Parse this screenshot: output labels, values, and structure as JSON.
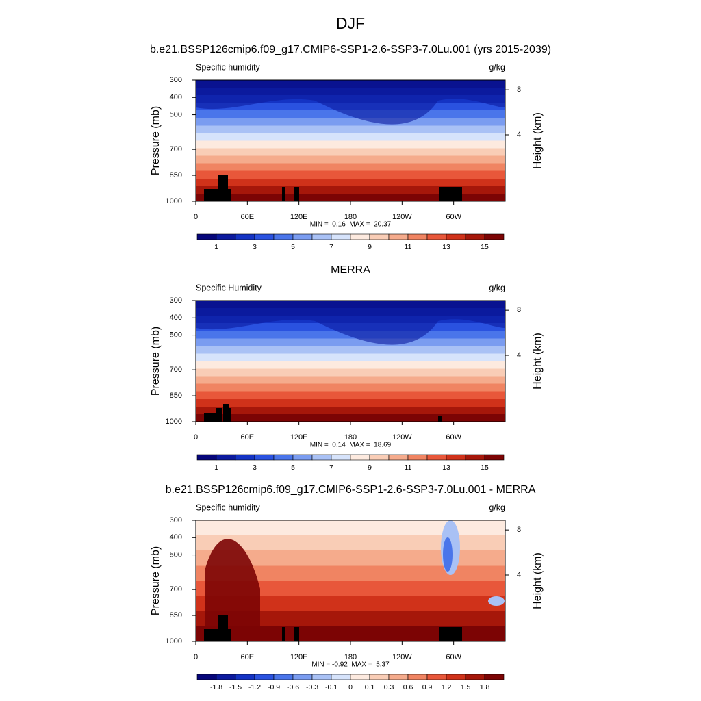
{
  "title": "DJF",
  "chart_data": [
    {
      "type": "contour",
      "title": "b.e21.BSSP126cmip6.f09_g17.CMIP6-SSP1-2.6-SSP3-7.0Lu.001 (yrs 2015-2039)",
      "left_label": "Specific humidity",
      "right_label": "g/kg",
      "ylabel": "Pressure (mb)",
      "y2label": "Height (km)",
      "ylim": [
        1000,
        300
      ],
      "yticks": [
        300,
        400,
        500,
        700,
        850,
        1000
      ],
      "y2ticks": [
        8,
        4
      ],
      "xlim": [
        0,
        360
      ],
      "xticks": [
        0,
        {
          "value": 60,
          "label": "60E"
        },
        {
          "value": 120,
          "label": "120E"
        },
        180,
        {
          "value": 240,
          "label": "120W"
        },
        {
          "value": 300,
          "label": "60W"
        }
      ],
      "stats": "MIN =  0.16  MAX =  20.37",
      "colorbar": {
        "labels": [
          1,
          3,
          5,
          7,
          9,
          11,
          13,
          15
        ],
        "colors": [
          "#06067a",
          "#0c1a9e",
          "#1433c4",
          "#2a52e0",
          "#4a75ea",
          "#7a9cf0",
          "#a9c1f5",
          "#d6e3fb",
          "#fdeadf",
          "#f9cdb6",
          "#f5ab8c",
          "#f08462",
          "#e8573a",
          "#d0321a",
          "#a6170a",
          "#7c0404"
        ]
      }
    },
    {
      "type": "contour",
      "title": "MERRA",
      "left_label": "Specific Humidity",
      "right_label": "g/kg",
      "ylabel": "Pressure (mb)",
      "y2label": "Height (km)",
      "ylim": [
        1000,
        300
      ],
      "yticks": [
        300,
        400,
        500,
        700,
        850,
        1000
      ],
      "y2ticks": [
        8,
        4
      ],
      "xlim": [
        0,
        360
      ],
      "xticks": [
        0,
        {
          "value": 60,
          "label": "60E"
        },
        {
          "value": 120,
          "label": "120E"
        },
        180,
        {
          "value": 240,
          "label": "120W"
        },
        {
          "value": 300,
          "label": "60W"
        }
      ],
      "stats": "MIN =  0.14  MAX =  18.69",
      "colorbar": {
        "labels": [
          1,
          3,
          5,
          7,
          9,
          11,
          13,
          15
        ],
        "colors": [
          "#06067a",
          "#0c1a9e",
          "#1433c4",
          "#2a52e0",
          "#4a75ea",
          "#7a9cf0",
          "#a9c1f5",
          "#d6e3fb",
          "#fdeadf",
          "#f9cdb6",
          "#f5ab8c",
          "#f08462",
          "#e8573a",
          "#d0321a",
          "#a6170a",
          "#7c0404"
        ]
      }
    },
    {
      "type": "contour",
      "title": "b.e21.BSSP126cmip6.f09_g17.CMIP6-SSP1-2.6-SSP3-7.0Lu.001 - MERRA",
      "left_label": "Specific humidity",
      "right_label": "g/kg",
      "ylabel": "Pressure (mb)",
      "y2label": "Height (km)",
      "ylim": [
        1000,
        300
      ],
      "yticks": [
        300,
        400,
        500,
        700,
        850,
        1000
      ],
      "y2ticks": [
        8,
        4
      ],
      "xlim": [
        0,
        360
      ],
      "xticks": [
        0,
        {
          "value": 60,
          "label": "60E"
        },
        {
          "value": 120,
          "label": "120E"
        },
        180,
        {
          "value": 240,
          "label": "120W"
        },
        {
          "value": 300,
          "label": "60W"
        }
      ],
      "stats": "MIN = -0.92  MAX =  5.37",
      "colorbar": {
        "labels": [
          -1.8,
          -1.5,
          -1.2,
          -0.9,
          -0.6,
          -0.3,
          -0.1,
          0,
          0.1,
          0.3,
          0.6,
          0.9,
          1.2,
          1.5,
          1.8
        ],
        "colors": [
          "#06067a",
          "#0c1a9e",
          "#1433c4",
          "#2a52e0",
          "#4a75ea",
          "#7a9cf0",
          "#a9c1f5",
          "#d6e3fb",
          "#fdeadf",
          "#f9cdb6",
          "#f5ab8c",
          "#f08462",
          "#e8573a",
          "#d0321a",
          "#a6170a",
          "#7c0404"
        ]
      }
    }
  ]
}
